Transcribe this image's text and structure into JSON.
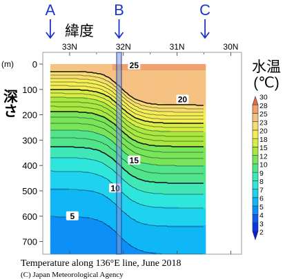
{
  "chart_data": {
    "type": "heatmap",
    "title": "Temperature along 136°E line, June 2018",
    "credit": "(C) Japan Meteorological Agency",
    "xlabel": "緯度",
    "ylabel": "深さ",
    "ylabel_unit": "(m)",
    "colorbar_title": "水温",
    "colorbar_unit": "(℃)",
    "x_ticks": [
      "33N",
      "32N",
      "31N",
      "30N"
    ],
    "x_tick_values": [
      33,
      32,
      31,
      30
    ],
    "xlim": [
      33.5,
      29.8
    ],
    "ylim": [
      750,
      0
    ],
    "y_ticks": [
      0,
      100,
      200,
      300,
      400,
      500,
      600,
      700
    ],
    "data_extent_lat": [
      33.36,
      30.48
    ],
    "station_markers": [
      {
        "label": "A",
        "lat": 33.36
      },
      {
        "label": "B",
        "lat": 32.08
      },
      {
        "label": "C",
        "lat": 30.48
      }
    ],
    "highlighted_station": "B",
    "colorbar_levels": [
      2,
      3,
      4,
      5,
      6,
      7,
      8,
      9,
      10,
      12,
      15,
      18,
      20,
      23,
      25,
      28,
      30
    ],
    "colorbar_colors": [
      "#0a1fcf",
      "#0a36e6",
      "#0b5cf0",
      "#0c8ff6",
      "#10b7f7",
      "#1fd3ef",
      "#2fe6dc",
      "#40e8b8",
      "#52e48a",
      "#78e45a",
      "#a8e840",
      "#d6ee45",
      "#f3ee55",
      "#f8dc70",
      "#f6c283",
      "#f2a070",
      "#e66a44"
    ],
    "contour_labels": [
      {
        "value": 25,
        "lat": 31.8,
        "depth": 5
      },
      {
        "value": 20,
        "lat": 30.9,
        "depth": 140
      },
      {
        "value": 15,
        "lat": 31.8,
        "depth": 380
      },
      {
        "value": 10,
        "lat": 32.15,
        "depth": 490
      },
      {
        "value": 5,
        "lat": 32.95,
        "depth": 600
      }
    ],
    "grid": false
  }
}
